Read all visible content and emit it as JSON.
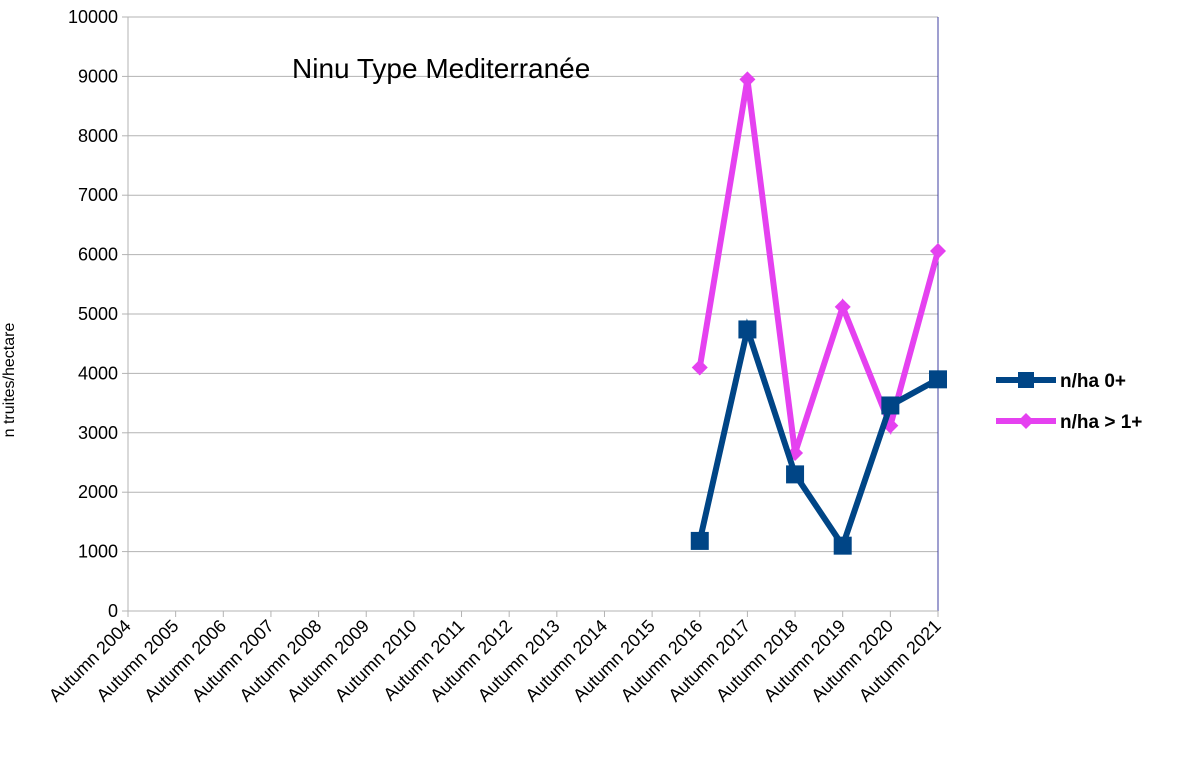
{
  "chart_data": {
    "type": "line",
    "title": "Ninu Type  Mediterranée",
    "ylabel": "n truites/hectare",
    "xlabel": "",
    "ylim": [
      0,
      10000
    ],
    "yticks": [
      0,
      1000,
      2000,
      3000,
      4000,
      5000,
      6000,
      7000,
      8000,
      9000,
      10000
    ],
    "grid": true,
    "legend_position": "right",
    "categories": [
      "Autumn 2004",
      "Autumn 2005",
      "Autumn 2006",
      "Autumn 2007",
      "Autumn 2008",
      "Autumn 2009",
      "Autumn 2010",
      "Autumn 2011",
      "Autumn 2012",
      "Autumn 2013",
      "Autumn 2014",
      "Autumn 2015",
      "Autumn 2016",
      "Autumn 2017",
      "Autumn 2018",
      "Autumn 2019",
      "Autumn 2020",
      "Autumn 2021"
    ],
    "series": [
      {
        "name": "n/ha 0+",
        "color": "#004586",
        "marker": "square",
        "values": [
          null,
          null,
          null,
          null,
          null,
          null,
          null,
          null,
          null,
          null,
          null,
          null,
          1180,
          4740,
          2300,
          1100,
          3460,
          3900
        ]
      },
      {
        "name": "n/ha > 1+",
        "color": "#e541f0",
        "marker": "diamond",
        "values": [
          null,
          null,
          null,
          null,
          null,
          null,
          null,
          null,
          null,
          null,
          null,
          null,
          4100,
          8950,
          2660,
          5120,
          3120,
          6060
        ]
      }
    ]
  }
}
